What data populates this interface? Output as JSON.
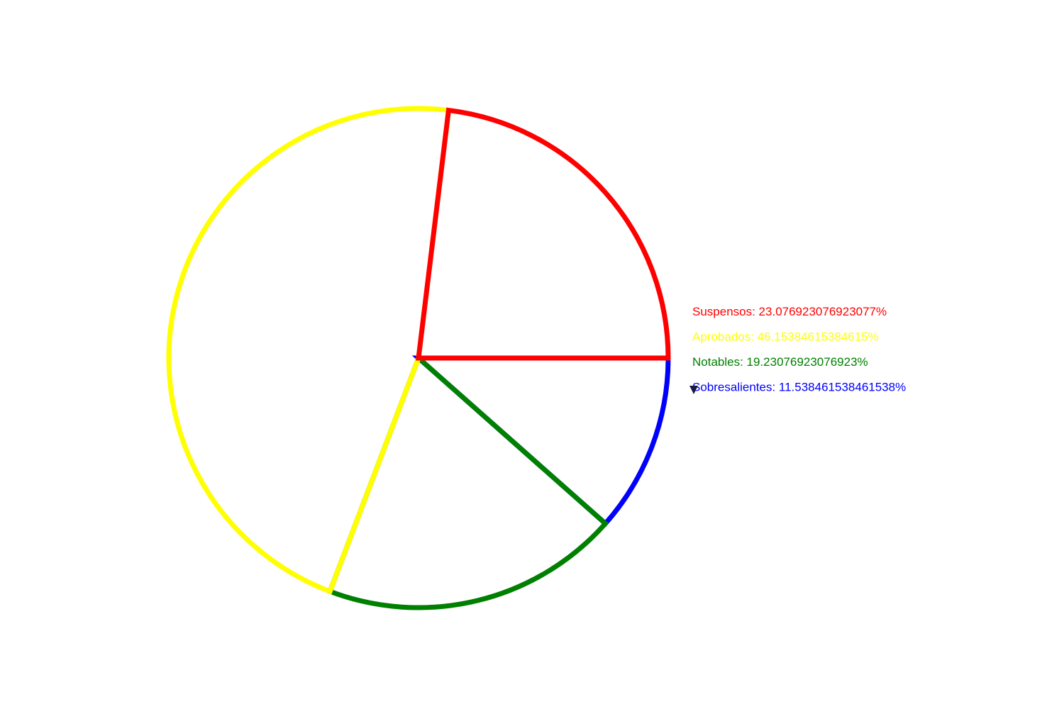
{
  "chart_data": {
    "type": "pie",
    "title": "",
    "start_angle_deg": 0,
    "direction": "counterclockwise",
    "slices": [
      {
        "name": "Suspensos",
        "label": "Suspensos: 23.076923076923077%",
        "value": 23.076923076923077,
        "color": "#ff0000"
      },
      {
        "name": "Aprobados",
        "label": "Aprobados: 46.15384615384615%",
        "value": 46.15384615384615,
        "color": "#ffff00"
      },
      {
        "name": "Notables",
        "label": "Notables: 19.23076923076923%",
        "value": 19.23076923076923,
        "color": "#008000"
      },
      {
        "name": "Sobresalientes",
        "label": "Sobresalientes: 11.538461538461538%",
        "value": 11.538461538461538,
        "color": "#0000ff"
      }
    ],
    "legend": "right",
    "fill": "none",
    "outline_only": true
  },
  "icons": {
    "cursor": "mouse-pointer-icon"
  },
  "background_color": "#ffffff"
}
